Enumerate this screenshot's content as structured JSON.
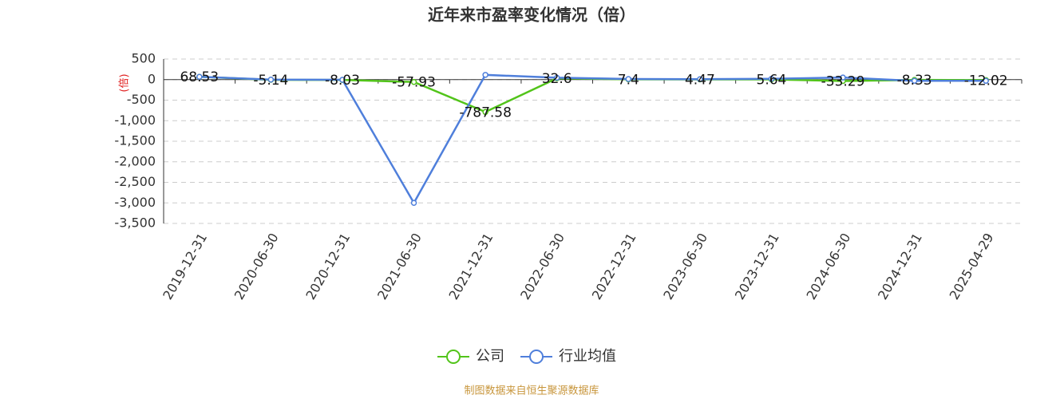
{
  "chart_data": {
    "type": "line",
    "title": "近年来市盈率变化情况（倍）",
    "y_label": "(倍)",
    "categories": [
      "2019-12-31",
      "2020-06-30",
      "2020-12-31",
      "2021-06-30",
      "2021-12-31",
      "2022-06-30",
      "2022-12-31",
      "2023-06-30",
      "2023-12-31",
      "2024-06-30",
      "2024-12-31",
      "2025-04-29"
    ],
    "series": [
      {
        "name": "公司",
        "color": "#52c41a",
        "values": [
          68.53,
          -5.14,
          -8.03,
          -57.93,
          -787.58,
          32.6,
          7.4,
          4.47,
          5.64,
          -33.29,
          -8.33,
          -12.02
        ],
        "show_labels": true
      },
      {
        "name": "行业均值",
        "color": "#4f7fdb",
        "values": [
          68,
          0,
          -5,
          -3000,
          115,
          45,
          15,
          10,
          20,
          50,
          -30,
          -30
        ]
      }
    ],
    "ylim": [
      -3500,
      500
    ],
    "yticks": [
      500,
      0,
      -500,
      {
        "value": -1000,
        "label": "-1,000"
      },
      {
        "value": -1500,
        "label": "-1,500"
      },
      {
        "value": -2000,
        "label": "-2,000"
      },
      {
        "value": -2500,
        "label": "-2,500"
      },
      {
        "value": -3000,
        "label": "-3,000"
      },
      {
        "value": -3500,
        "label": "-3,500"
      }
    ],
    "grid": true,
    "legend": "bottom",
    "source": "制图数据来自恒生聚源数据库"
  }
}
